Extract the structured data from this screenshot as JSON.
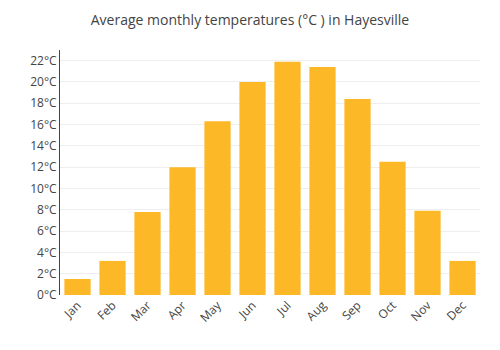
{
  "chart_data": {
    "type": "bar",
    "title": "Average monthly temperatures (°C ) in Hayesville",
    "categories": [
      "Jan",
      "Feb",
      "Mar",
      "Apr",
      "May",
      "Jun",
      "Jul",
      "Aug",
      "Sep",
      "Oct",
      "Nov",
      "Dec"
    ],
    "values": [
      1.5,
      3.2,
      7.8,
      12.0,
      16.3,
      20.0,
      21.9,
      21.4,
      18.4,
      12.5,
      7.9,
      3.2
    ],
    "color": "#FDB827",
    "ylim": [
      0,
      23
    ],
    "yticks": [
      {
        "value": 0,
        "label": "0°C"
      },
      {
        "value": 2,
        "label": "2°C"
      },
      {
        "value": 4,
        "label": "4°C"
      },
      {
        "value": 6,
        "label": "6°C"
      },
      {
        "value": 8,
        "label": "8°C"
      },
      {
        "value": 10,
        "label": "10°C"
      },
      {
        "value": 12,
        "label": "12°C"
      },
      {
        "value": 14,
        "label": "14°C"
      },
      {
        "value": 16,
        "label": "16°C"
      },
      {
        "value": 18,
        "label": "18°C"
      },
      {
        "value": 20,
        "label": "20°C"
      },
      {
        "value": 22,
        "label": "22°C"
      }
    ],
    "grid": true
  }
}
